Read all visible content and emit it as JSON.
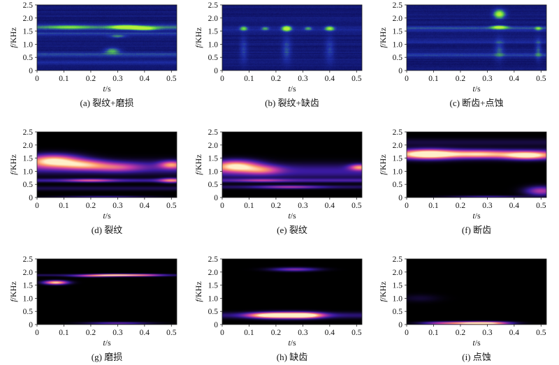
{
  "colors": {
    "spec_bg": "#0a0a52",
    "spec_mid": "#1f2fa8",
    "spec_hot": "#5ad04a",
    "spec_peak": "#b8f03a",
    "tf_bg": "#000000",
    "tf_low": "#3a1aa0",
    "tf_mid": "#c83ca8",
    "tf_high": "#ff9a6a",
    "tf_peak": "#fff0c8"
  },
  "axes": {
    "xlabel_var": "t",
    "xlabel_unit": "/s",
    "ylabel_var": "f",
    "ylabel_unit": "/KHz",
    "xlim": [
      0,
      0.5
    ],
    "ylim": [
      0,
      2.5
    ],
    "xticks": [
      "0",
      "0.1",
      "0.2",
      "0.3",
      "0.4",
      "0.5"
    ],
    "yticks": [
      "0",
      "0.5",
      "1.0",
      "1.5",
      "2.0",
      "2.5"
    ]
  },
  "chart_data": [
    {
      "type": "heatmap",
      "colormap": "spectrogram",
      "caption": "(a) 裂纹+磨损",
      "blobs": [
        {
          "t": 0.33,
          "f": 1.65,
          "st": 0.035,
          "sf": 0.05,
          "a": 1.0
        },
        {
          "t": 0.4,
          "f": 1.6,
          "st": 0.03,
          "sf": 0.05,
          "a": 0.7
        },
        {
          "t": 0.28,
          "f": 0.75,
          "st": 0.02,
          "sf": 0.08,
          "a": 0.55
        },
        {
          "t": 0.3,
          "f": 1.3,
          "st": 0.02,
          "sf": 0.04,
          "a": 0.4
        },
        {
          "t": 0.12,
          "f": 1.65,
          "st": 0.05,
          "sf": 0.05,
          "a": 0.35
        }
      ],
      "bands": [
        {
          "f": 1.65,
          "sf": 0.07,
          "a": 0.4
        },
        {
          "f": 1.4,
          "sf": 0.05,
          "a": 0.25
        },
        {
          "f": 0.6,
          "sf": 0.06,
          "a": 0.3
        },
        {
          "f": 0.3,
          "sf": 0.05,
          "a": 0.15
        }
      ]
    },
    {
      "type": "heatmap",
      "colormap": "spectrogram",
      "caption": "(b) 裂纹+缺齿",
      "blobs": [
        {
          "t": 0.24,
          "f": 1.6,
          "st": 0.012,
          "sf": 0.07,
          "a": 1.0
        },
        {
          "t": 0.4,
          "f": 1.6,
          "st": 0.012,
          "sf": 0.06,
          "a": 0.75
        },
        {
          "t": 0.08,
          "f": 1.6,
          "st": 0.01,
          "sf": 0.06,
          "a": 0.6
        },
        {
          "t": 0.16,
          "f": 1.6,
          "st": 0.01,
          "sf": 0.05,
          "a": 0.45
        },
        {
          "t": 0.32,
          "f": 1.6,
          "st": 0.01,
          "sf": 0.05,
          "a": 0.45
        },
        {
          "t": 0.24,
          "f": 0.8,
          "st": 0.012,
          "sf": 0.35,
          "a": 0.3
        },
        {
          "t": 0.08,
          "f": 0.8,
          "st": 0.01,
          "sf": 0.35,
          "a": 0.25
        },
        {
          "t": 0.4,
          "f": 0.8,
          "st": 0.012,
          "sf": 0.35,
          "a": 0.25
        }
      ],
      "bands": [
        {
          "f": 1.6,
          "sf": 0.05,
          "a": 0.15
        }
      ]
    },
    {
      "type": "heatmap",
      "colormap": "spectrogram",
      "caption": "(c) 断齿+点蚀",
      "blobs": [
        {
          "t": 0.345,
          "f": 2.15,
          "st": 0.015,
          "sf": 0.12,
          "a": 0.9
        },
        {
          "t": 0.345,
          "f": 1.65,
          "st": 0.02,
          "sf": 0.05,
          "a": 0.8
        },
        {
          "t": 0.49,
          "f": 1.6,
          "st": 0.008,
          "sf": 0.05,
          "a": 0.5
        },
        {
          "t": 0.345,
          "f": 0.8,
          "st": 0.012,
          "sf": 0.3,
          "a": 0.3
        },
        {
          "t": 0.49,
          "f": 0.8,
          "st": 0.008,
          "sf": 0.3,
          "a": 0.3
        }
      ],
      "bands": [
        {
          "f": 1.6,
          "sf": 0.06,
          "a": 0.3
        },
        {
          "f": 0.6,
          "sf": 0.06,
          "a": 0.25
        },
        {
          "f": 1.1,
          "sf": 0.06,
          "a": 0.15
        }
      ]
    },
    {
      "type": "heatmap",
      "colormap": "time-frequency",
      "caption": "(d) 裂纹",
      "blobs": [
        {
          "t": 0.06,
          "f": 1.4,
          "st": 0.07,
          "sf": 0.16,
          "a": 0.95
        },
        {
          "t": 0.18,
          "f": 1.25,
          "st": 0.06,
          "sf": 0.13,
          "a": 0.55
        },
        {
          "t": 0.3,
          "f": 1.15,
          "st": 0.06,
          "sf": 0.12,
          "a": 0.35
        },
        {
          "t": 0.5,
          "f": 1.25,
          "st": 0.03,
          "sf": 0.1,
          "a": 0.6
        },
        {
          "t": 0.2,
          "f": 0.65,
          "st": 0.06,
          "sf": 0.04,
          "a": 0.4
        },
        {
          "t": 0.5,
          "f": 0.65,
          "st": 0.03,
          "sf": 0.06,
          "a": 0.55
        },
        {
          "t": 0.25,
          "f": 0.02,
          "st": 0.12,
          "sf": 0.03,
          "a": 0.25
        }
      ],
      "bands": [
        {
          "f": 1.15,
          "sf": 0.18,
          "a": 0.28
        },
        {
          "f": 0.65,
          "sf": 0.05,
          "a": 0.25
        },
        {
          "f": 0.35,
          "sf": 0.06,
          "a": 0.12
        }
      ]
    },
    {
      "type": "heatmap",
      "colormap": "time-frequency",
      "caption": "(e) 裂纹",
      "blobs": [
        {
          "t": 0.05,
          "f": 1.2,
          "st": 0.06,
          "sf": 0.15,
          "a": 0.9
        },
        {
          "t": 0.15,
          "f": 1.05,
          "st": 0.05,
          "sf": 0.12,
          "a": 0.45
        },
        {
          "t": 0.51,
          "f": 1.15,
          "st": 0.025,
          "sf": 0.08,
          "a": 0.65
        },
        {
          "t": 0.15,
          "f": 0.65,
          "st": 0.06,
          "sf": 0.04,
          "a": 0.25
        },
        {
          "t": 0.25,
          "f": 0.4,
          "st": 0.08,
          "sf": 0.04,
          "a": 0.35
        }
      ],
      "bands": [
        {
          "f": 1.0,
          "sf": 0.2,
          "a": 0.25
        },
        {
          "f": 0.65,
          "sf": 0.05,
          "a": 0.25
        },
        {
          "f": 0.4,
          "sf": 0.05,
          "a": 0.15
        }
      ]
    },
    {
      "type": "heatmap",
      "colormap": "time-frequency",
      "caption": "(f) 断齿",
      "blobs": [
        {
          "t": 0.08,
          "f": 1.65,
          "st": 0.07,
          "sf": 0.12,
          "a": 1.0
        },
        {
          "t": 0.45,
          "f": 1.6,
          "st": 0.06,
          "sf": 0.1,
          "a": 0.85
        },
        {
          "t": 0.27,
          "f": 1.65,
          "st": 0.08,
          "sf": 0.1,
          "a": 0.6
        },
        {
          "t": 0.5,
          "f": 0.25,
          "st": 0.04,
          "sf": 0.12,
          "a": 0.5
        },
        {
          "t": 0.3,
          "f": 0.03,
          "st": 0.1,
          "sf": 0.03,
          "a": 0.25
        }
      ],
      "bands": [
        {
          "f": 1.65,
          "sf": 0.13,
          "a": 0.35
        },
        {
          "f": 2.1,
          "sf": 0.1,
          "a": 0.1
        }
      ]
    },
    {
      "type": "heatmap",
      "colormap": "time-frequency",
      "caption": "(g) 磨损",
      "blobs": [
        {
          "t": 0.07,
          "f": 1.6,
          "st": 0.03,
          "sf": 0.05,
          "a": 0.95
        },
        {
          "t": 0.29,
          "f": 1.88,
          "st": 0.06,
          "sf": 0.03,
          "a": 0.85
        },
        {
          "t": 0.2,
          "f": 1.85,
          "st": 0.05,
          "sf": 0.03,
          "a": 0.4
        },
        {
          "t": 0.4,
          "f": 1.88,
          "st": 0.05,
          "sf": 0.03,
          "a": 0.45
        },
        {
          "t": 0.3,
          "f": 0.05,
          "st": 0.08,
          "sf": 0.03,
          "a": 0.35
        }
      ],
      "bands": [
        {
          "f": 1.88,
          "sf": 0.03,
          "a": 0.15
        }
      ]
    },
    {
      "type": "heatmap",
      "colormap": "time-frequency",
      "caption": "(h) 缺齿",
      "blobs": [
        {
          "t": 0.25,
          "f": 0.35,
          "st": 0.07,
          "sf": 0.08,
          "a": 1.0
        },
        {
          "t": 0.16,
          "f": 0.35,
          "st": 0.05,
          "sf": 0.07,
          "a": 0.6
        },
        {
          "t": 0.32,
          "f": 0.35,
          "st": 0.04,
          "sf": 0.07,
          "a": 0.55
        },
        {
          "t": 0.27,
          "f": 2.1,
          "st": 0.06,
          "sf": 0.05,
          "a": 0.4
        }
      ],
      "bands": [
        {
          "f": 0.35,
          "sf": 0.08,
          "a": 0.18
        }
      ]
    },
    {
      "type": "heatmap",
      "colormap": "time-frequency",
      "caption": "(i) 点蚀",
      "blobs": [
        {
          "t": 0.24,
          "f": 0.05,
          "st": 0.07,
          "sf": 0.04,
          "a": 0.95
        },
        {
          "t": 0.32,
          "f": 0.05,
          "st": 0.05,
          "sf": 0.04,
          "a": 0.55
        },
        {
          "t": 0.12,
          "f": 0.05,
          "st": 0.05,
          "sf": 0.04,
          "a": 0.35
        },
        {
          "t": 0.05,
          "f": 1.0,
          "st": 0.05,
          "sf": 0.1,
          "a": 0.08
        }
      ],
      "bands": []
    }
  ]
}
